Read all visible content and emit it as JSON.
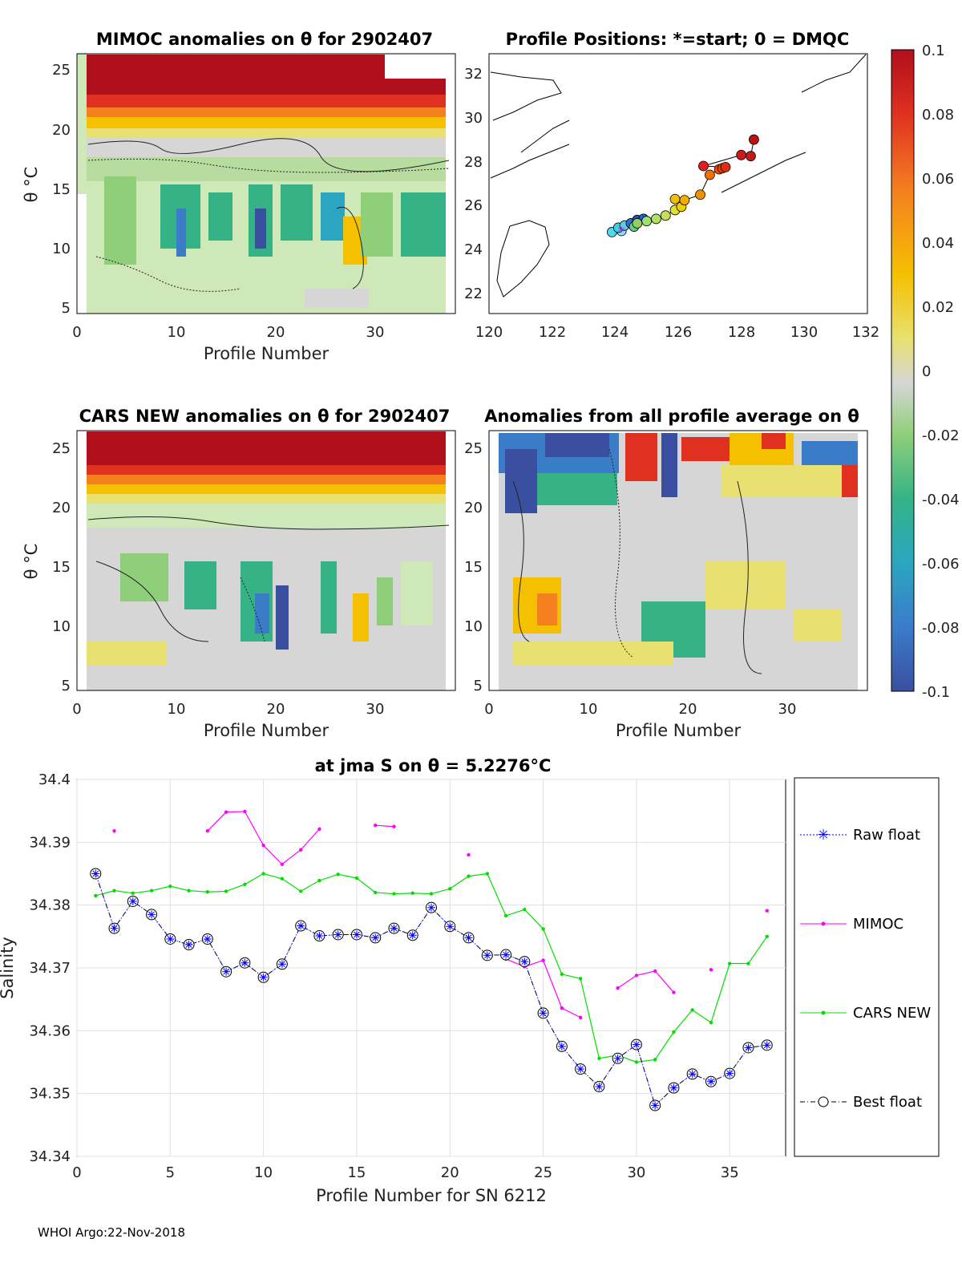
{
  "colorbar": {
    "ticks": [
      "0.1",
      "0.08",
      "0.06",
      "0.04",
      "0.02",
      "0",
      "-0.02",
      "-0.04",
      "-0.06",
      "-0.08",
      "-0.1"
    ],
    "colors": [
      "#3a4fa0",
      "#3b7cc9",
      "#2aa6c0",
      "#35b386",
      "#8fcf7a",
      "#cfe8b8",
      "#d6d6d6",
      "#e8e070",
      "#f5c000",
      "#f58020",
      "#e03020",
      "#b00f1c"
    ]
  },
  "panels": {
    "mimoc": {
      "title": "MIMOC anomalies on θ  for 2902407",
      "xlabel": "Profile Number",
      "ylabel": "θ °C",
      "xticks": [
        "0",
        "10",
        "20",
        "30"
      ],
      "yticks": [
        "25",
        "20",
        "15",
        "10",
        "5"
      ]
    },
    "positions": {
      "title": "Profile Positions: *=start; 0 = DMQC",
      "xticks": [
        "120",
        "122",
        "124",
        "126",
        "128",
        "130",
        "132"
      ],
      "yticks": [
        "32",
        "30",
        "28",
        "26",
        "24",
        "22"
      ]
    },
    "cars": {
      "title": "CARS NEW anomalies on θ for 2902407",
      "xlabel": "Profile Number",
      "ylabel": "θ °C",
      "xticks": [
        "0",
        "10",
        "20",
        "30"
      ],
      "yticks": [
        "25",
        "20",
        "15",
        "10",
        "5"
      ]
    },
    "allavg": {
      "title": "Anomalies from all profile average on θ",
      "xlabel": "Profile Number",
      "xticks": [
        "0",
        "10",
        "20",
        "30"
      ],
      "yticks": [
        "25",
        "20",
        "15",
        "10",
        "5"
      ]
    }
  },
  "chart_data": {
    "type": "line",
    "title": "at jma S on θ = 5.2276°C",
    "xlabel": "Profile Number for SN 6212",
    "ylabel": "Salinity",
    "xlim": [
      0,
      38
    ],
    "ylim": [
      34.34,
      34.4
    ],
    "xticks": [
      "0",
      "5",
      "10",
      "15",
      "20",
      "25",
      "30",
      "35"
    ],
    "yticks": [
      "34.4",
      "34.39",
      "34.38",
      "34.37",
      "34.36",
      "34.35",
      "34.34"
    ],
    "grid": true,
    "legend_position": "right-outside",
    "series": [
      {
        "name": "Raw float",
        "color": "#0000ff",
        "x": [
          1,
          2,
          3,
          4,
          5,
          6,
          7,
          8,
          9,
          10,
          11,
          12,
          13,
          14,
          15,
          16,
          17,
          18,
          19,
          20,
          21,
          22,
          23,
          24,
          25,
          26,
          27,
          28,
          29,
          30,
          31,
          32,
          33,
          34,
          35,
          36,
          37
        ],
        "values": [
          34.385,
          34.3763,
          34.3806,
          34.3785,
          34.3746,
          34.3737,
          34.3746,
          34.3694,
          34.3708,
          34.3685,
          34.3706,
          34.3767,
          34.3751,
          34.3753,
          34.3753,
          34.3748,
          34.3763,
          34.3752,
          34.3796,
          34.3766,
          34.3748,
          34.372,
          34.3721,
          34.371,
          34.3628,
          34.3575,
          34.3539,
          34.3511,
          34.3556,
          34.3578,
          34.3481,
          34.3509,
          34.3531,
          34.3519,
          34.3532,
          34.3573,
          34.3577
        ]
      },
      {
        "name": "MIMOC",
        "color": "#ff00ff",
        "x": [
          2,
          7,
          8,
          9,
          10,
          11,
          12,
          13,
          16,
          17,
          21,
          23,
          24,
          25,
          26,
          27,
          29,
          30,
          31,
          32,
          34,
          37
        ],
        "values": [
          34.3918,
          34.3918,
          34.3948,
          34.3949,
          34.3895,
          34.3865,
          34.3888,
          34.3921,
          34.3927,
          34.3925,
          34.388,
          34.3714,
          34.3702,
          34.3712,
          34.3636,
          34.3621,
          34.3668,
          34.3688,
          34.3695,
          34.3661,
          34.3697,
          34.3791
        ]
      },
      {
        "name": "CARS NEW",
        "color": "#00e000",
        "x": [
          1,
          2,
          3,
          4,
          5,
          6,
          7,
          8,
          9,
          10,
          11,
          12,
          13,
          14,
          15,
          16,
          17,
          18,
          19,
          20,
          21,
          22,
          23,
          24,
          25,
          26,
          27,
          28,
          29,
          30,
          31,
          32,
          33,
          34,
          35,
          36,
          37
        ],
        "values": [
          34.3815,
          34.3823,
          34.3819,
          34.3823,
          34.383,
          34.3823,
          34.3821,
          34.3822,
          34.3833,
          34.385,
          34.3842,
          34.3822,
          34.3839,
          34.3849,
          34.3843,
          34.382,
          34.3818,
          34.3819,
          34.3818,
          34.3826,
          34.3846,
          34.385,
          34.3783,
          34.3793,
          34.3762,
          34.369,
          34.3683,
          34.3556,
          34.3561,
          34.355,
          34.3554,
          34.3598,
          34.3633,
          34.3613,
          34.3707,
          34.3707,
          34.375
        ]
      },
      {
        "name": "Best float",
        "color": "#000000",
        "x": [
          1,
          2,
          3,
          4,
          5,
          6,
          7,
          8,
          9,
          10,
          11,
          12,
          13,
          14,
          15,
          16,
          17,
          18,
          19,
          20,
          21,
          22,
          23,
          24,
          25,
          26,
          27,
          28,
          29,
          30,
          31,
          32,
          33,
          34,
          35,
          36,
          37
        ],
        "values": [
          34.385,
          34.3763,
          34.3806,
          34.3785,
          34.3746,
          34.3737,
          34.3746,
          34.3694,
          34.3708,
          34.3685,
          34.3706,
          34.3767,
          34.3751,
          34.3753,
          34.3753,
          34.3748,
          34.3763,
          34.3752,
          34.3796,
          34.3766,
          34.3748,
          34.372,
          34.3721,
          34.371,
          34.3628,
          34.3575,
          34.3539,
          34.3511,
          34.3556,
          34.3578,
          34.3481,
          34.3509,
          34.3531,
          34.3519,
          34.3532,
          34.3573,
          34.3577
        ]
      }
    ]
  },
  "positions_data": {
    "lon": [
      124.2,
      123.9,
      124.1,
      124.3,
      124.5,
      124.7,
      124.9,
      124.6,
      124.7,
      125.0,
      125.3,
      125.6,
      125.9,
      126.1,
      125.9,
      126.2,
      126.7,
      127.0,
      127.3,
      127.4,
      127.5,
      126.8,
      128.0,
      128.3,
      128.4
    ],
    "lat": [
      24.95,
      24.9,
      25.1,
      25.2,
      25.3,
      25.45,
      25.5,
      25.15,
      25.3,
      25.4,
      25.5,
      25.65,
      25.9,
      26.05,
      26.4,
      26.35,
      26.6,
      27.5,
      27.75,
      27.8,
      27.85,
      27.9,
      28.4,
      28.35,
      29.1
    ],
    "colors": [
      "#8fe0f0",
      "#50d8f0",
      "#40d0e0",
      "#60c8e8",
      "#3070d0",
      "#2050d0",
      "#2060d0",
      "#60d080",
      "#90d060",
      "#a0e070",
      "#b0e060",
      "#c8e050",
      "#e0e030",
      "#f0d000",
      "#f0c000",
      "#f0b000",
      "#f09000",
      "#f07000",
      "#f05000",
      "#e04000",
      "#e03010",
      "#e02020",
      "#d01818",
      "#c81818",
      "#c01010"
    ]
  },
  "footer": "WHOI Argo:22-Nov-2018"
}
